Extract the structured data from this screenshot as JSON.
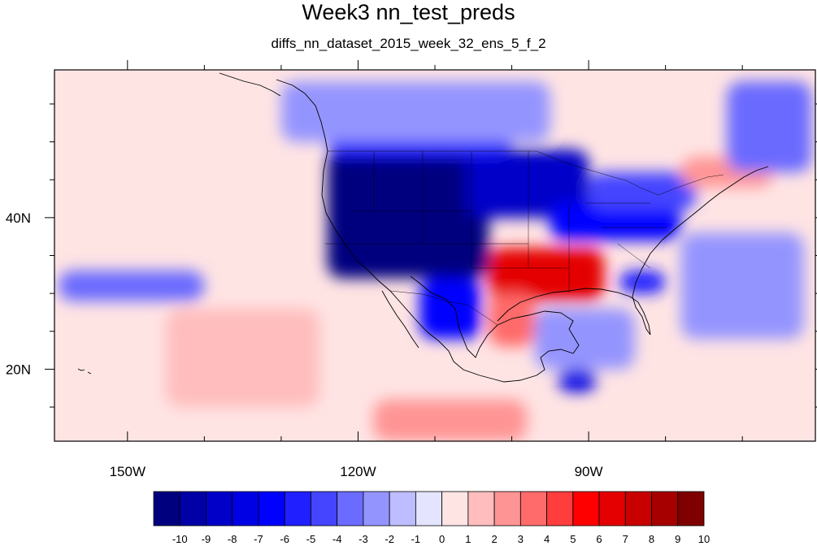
{
  "title": "Week3 nn_test_preds",
  "subtitle": "diffs_nn_dataset_2015_week_32_ens_5_f_2",
  "map": {
    "projection": "cylindrical-equidistant",
    "lon_range": [
      -159.5,
      -60.5
    ],
    "lat_range": [
      10.5,
      59.5
    ],
    "x_ticks": [
      {
        "lon": -150,
        "label": "150W"
      },
      {
        "lon": -120,
        "label": "120W"
      },
      {
        "lon": -90,
        "label": "90W"
      }
    ],
    "y_ticks": [
      {
        "lat": 40,
        "label": "40N"
      },
      {
        "lat": 20,
        "label": "20N"
      }
    ],
    "minor_lon_step": 10,
    "minor_lat_step": 5
  },
  "colorbar": {
    "levels": [
      "-10",
      "-9",
      "-8",
      "-7",
      "-6",
      "-5",
      "-4",
      "-3",
      "-2",
      "-1",
      "0",
      "1",
      "2",
      "3",
      "4",
      "5",
      "6",
      "7",
      "8",
      "9",
      "10"
    ],
    "colors": [
      "#00007f",
      "#0000a6",
      "#0000c8",
      "#0000e4",
      "#0000ff",
      "#1f1fff",
      "#4545ff",
      "#6b6bff",
      "#9494ff",
      "#bdbdff",
      "#e4e4ff",
      "#ffe4e4",
      "#ffbdbd",
      "#ff9494",
      "#ff6b6b",
      "#ff3d3d",
      "#ff0000",
      "#e40000",
      "#c80000",
      "#a60000",
      "#7f0000"
    ]
  },
  "chart_data": {
    "type": "heatmap",
    "title": "Week3 nn_test_preds",
    "subtitle": "diffs_nn_dataset_2015_week_32_ens_5_f_2",
    "xlabel": "",
    "ylabel": "",
    "x_ticks": [
      "150W",
      "120W",
      "90W"
    ],
    "y_ticks": [
      "40N",
      "20N"
    ],
    "background_value": 0.5,
    "regions": [
      {
        "name": "western-us-strong-negative",
        "lon": [
          -124,
          -103
        ],
        "lat": [
          32,
          49
        ],
        "value": -9.5
      },
      {
        "name": "northern-plains-negative",
        "lon": [
          -106,
          -90
        ],
        "lat": [
          40,
          49
        ],
        "value": -7.5
      },
      {
        "name": "canada-rockies-negative",
        "lon": [
          -124,
          -100
        ],
        "lat": [
          48,
          55
        ],
        "value": -5
      },
      {
        "name": "midwest-band-negative",
        "lon": [
          -95,
          -78
        ],
        "lat": [
          37,
          42
        ],
        "value": -6
      },
      {
        "name": "great-lakes-negative",
        "lon": [
          -90,
          -76
        ],
        "lat": [
          41,
          46
        ],
        "value": -4
      },
      {
        "name": "southeast-negative",
        "lon": [
          -86,
          -80
        ],
        "lat": [
          30,
          33
        ],
        "value": -5
      },
      {
        "name": "central-mexico-negative",
        "lon": [
          -112,
          -104
        ],
        "lat": [
          24,
          32
        ],
        "value": -6
      },
      {
        "name": "southern-plains-positive",
        "lon": [
          -103,
          -88
        ],
        "lat": [
          29,
          36
        ],
        "value": 6
      },
      {
        "name": "texas-gulf-positive",
        "lon": [
          -103,
          -97
        ],
        "lat": [
          23,
          30
        ],
        "value": 3.5
      },
      {
        "name": "new-england-positive",
        "lon": [
          -78,
          -66
        ],
        "lat": [
          44,
          48
        ],
        "value": 2.5
      },
      {
        "name": "yucatan-negative",
        "lon": [
          -94,
          -89
        ],
        "lat": [
          17,
          20
        ],
        "value": -7
      },
      {
        "name": "pacific-band-negative",
        "lon": [
          -159,
          -140
        ],
        "lat": [
          29,
          33
        ],
        "value": -2.5
      },
      {
        "name": "alaska-canada-negative",
        "lon": [
          -130,
          -95
        ],
        "lat": [
          50,
          58
        ],
        "value": -2
      },
      {
        "name": "atlantic-negative",
        "lon": [
          -78,
          -62
        ],
        "lat": [
          24,
          38
        ],
        "value": -1.5
      },
      {
        "name": "pacific-southwest-positive",
        "lon": [
          -145,
          -125
        ],
        "lat": [
          15,
          28
        ],
        "value": 1.5
      },
      {
        "name": "east-pacific-positive",
        "lon": [
          -118,
          -98
        ],
        "lat": [
          10.5,
          16
        ],
        "value": 2
      },
      {
        "name": "gulf-of-mexico-negative",
        "lon": [
          -97,
          -84
        ],
        "lat": [
          20,
          28
        ],
        "value": -1.5
      },
      {
        "name": "north-atlantic-negative",
        "lon": [
          -72,
          -61
        ],
        "lat": [
          46,
          58
        ],
        "value": -2.5
      }
    ]
  }
}
